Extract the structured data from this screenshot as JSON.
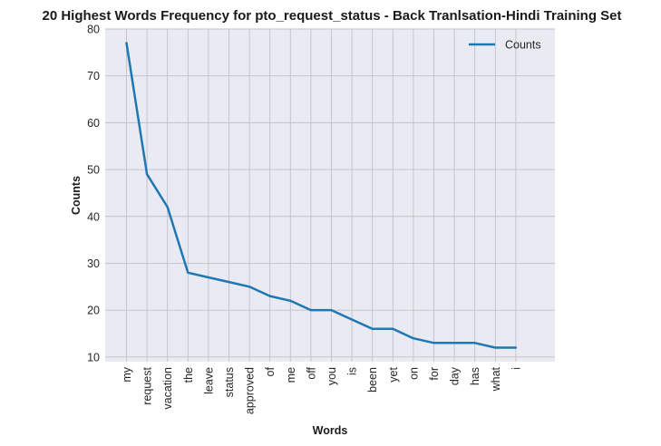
{
  "chart_data": {
    "type": "line",
    "title": "20 Highest Words Frequency for pto_request_status - Back Tranlsation-Hindi Training Set",
    "xlabel": "Words",
    "ylabel": "Counts",
    "ylim": [
      9,
      80
    ],
    "yticks": [
      10,
      20,
      30,
      40,
      50,
      60,
      70,
      80
    ],
    "grid": true,
    "legend_position": "top-right",
    "categories": [
      "my",
      "request",
      "vacation",
      "the",
      "leave",
      "status",
      "approved",
      "of",
      "me",
      "off",
      "you",
      "is",
      "been",
      "yet",
      "on",
      "for",
      "day",
      "has",
      "what",
      "i"
    ],
    "series": [
      {
        "name": "Counts",
        "color": "#1f77b4",
        "values": [
          77,
          49,
          42,
          28,
          27,
          26,
          25,
          23,
          22,
          20,
          20,
          18,
          16,
          16,
          14,
          13,
          13,
          13,
          12,
          12
        ]
      }
    ]
  },
  "colors": {
    "plot_background": "#eaeaf2",
    "grid": "#c0c0c6"
  }
}
